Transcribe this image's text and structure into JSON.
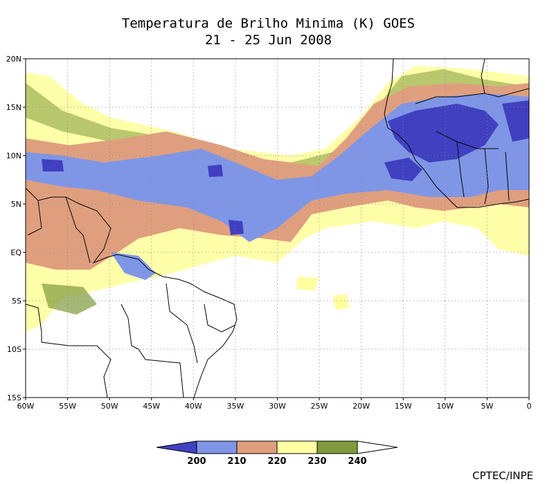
{
  "title": {
    "line1": "Temperatura de Brilho Minima (K) GOES",
    "line2": "21 - 25 Jun 2008"
  },
  "map": {
    "lon_range": [
      -60,
      0
    ],
    "lat_range": [
      -15,
      20
    ],
    "x_ticks": [
      "60W",
      "55W",
      "50W",
      "45W",
      "40W",
      "35W",
      "30W",
      "25W",
      "20W",
      "15W",
      "10W",
      "5W",
      "0"
    ],
    "y_ticks": [
      "20N",
      "15N",
      "10N",
      "5N",
      "EQ",
      "5S",
      "10S",
      "15S"
    ],
    "grid": "dotted"
  },
  "colorbar": {
    "levels": [
      "200",
      "210",
      "220",
      "230",
      "240"
    ],
    "colors": [
      "#4040c0",
      "#7f96e6",
      "#df9f7f",
      "#ffffa0",
      "#7f9a3c",
      "#ffffff"
    ]
  },
  "credit": "CPTEC/INPE"
}
